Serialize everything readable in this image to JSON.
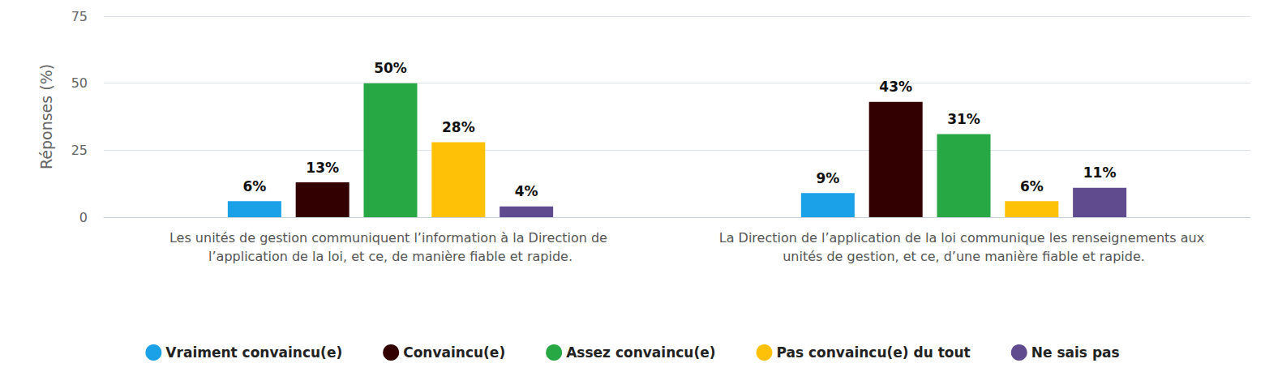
{
  "chart_data": {
    "type": "bar",
    "ylabel": "Réponses (%)",
    "categories": [
      "Les unités de gestion communiquent l’information à la Direction de l’application de la loi, et ce, de manière fiable et rapide.",
      "La Direction de l’application de la loi communique les renseignements aux unités de gestion, et ce, d’une manière fiable et rapide."
    ],
    "series": [
      {
        "name": "Vraiment convaincu(e)",
        "color": "#1ba1e8",
        "values": [
          6,
          9
        ],
        "value_labels": [
          "6%",
          "9%"
        ]
      },
      {
        "name": "Convaincu(e)",
        "color": "#330000",
        "values": [
          13,
          43
        ],
        "value_labels": [
          "13%",
          "43%"
        ]
      },
      {
        "name": "Assez convaincu(e)",
        "color": "#28a745",
        "values": [
          50,
          31
        ],
        "value_labels": [
          "50%",
          "31%"
        ]
      },
      {
        "name": "Pas convaincu(e) du tout",
        "color": "#ffc107",
        "values": [
          28,
          6
        ],
        "value_labels": [
          "28%",
          "6%"
        ]
      },
      {
        "name": "Ne sais pas",
        "color": "#614b8f",
        "values": [
          4,
          11
        ],
        "value_labels": [
          "4%",
          "11%"
        ]
      }
    ],
    "ylim": [
      0,
      75
    ],
    "yticks": [
      0,
      25,
      50,
      75
    ],
    "grid": true,
    "legend": "bottom",
    "data_labels": true
  }
}
